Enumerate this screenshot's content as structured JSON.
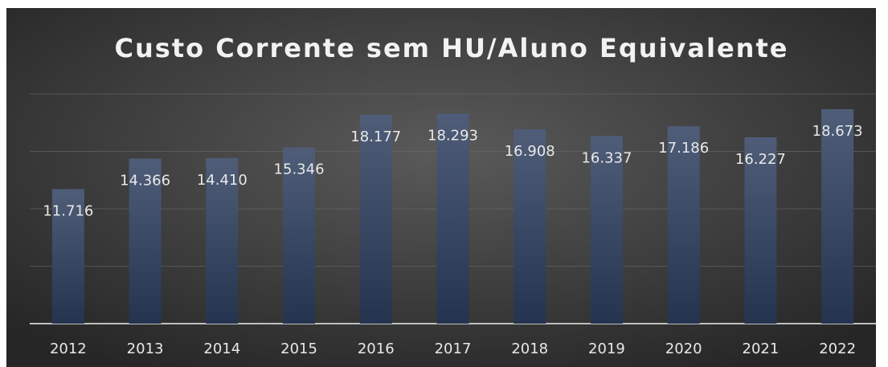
{
  "chart_data": {
    "type": "bar",
    "title": "Custo Corrente sem HU/Aluno Equivalente",
    "categories": [
      "2012",
      "2013",
      "2014",
      "2015",
      "2016",
      "2017",
      "2018",
      "2019",
      "2020",
      "2021",
      "2022"
    ],
    "values": [
      11716,
      14366,
      14410,
      15346,
      18177,
      18293,
      16908,
      16337,
      17186,
      16227,
      18673
    ],
    "value_labels": [
      "11.716",
      "14.366",
      "14.410",
      "15.346",
      "18.177",
      "18.293",
      "16.908",
      "16.337",
      "17.186",
      "16.227",
      "18.673"
    ],
    "color": "#3b4a66",
    "ylim": [
      0,
      20000
    ],
    "yticks": [
      0,
      5000,
      10000,
      15000,
      20000
    ],
    "grid": true
  }
}
